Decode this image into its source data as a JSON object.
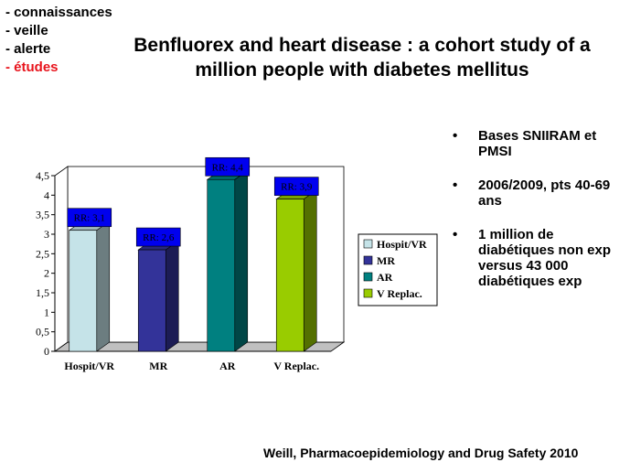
{
  "menu": {
    "items": [
      {
        "label": "- connaissances",
        "color": "#000000"
      },
      {
        "label": "- veille",
        "color": "#000000"
      },
      {
        "label": "- alerte",
        "color": "#000000"
      },
      {
        "label": "- études",
        "color": "#e8141c"
      }
    ]
  },
  "slide": {
    "title": "Benfluorex and heart disease : a cohort study of a million people with diabetes mellitus",
    "bullets": [
      "Bases SNIIRAM et PMSI",
      " 2006/2009, pts 40-69 ans",
      "1 million de diabétiques non exp  versus 43 000 diabétiques exp"
    ],
    "reference": "Weill,  Pharmacoepidemiology and Drug Safety 2010"
  },
  "chart_data": {
    "type": "bar",
    "categories": [
      "Hospit/VR",
      "MR",
      "AR",
      "V Replac."
    ],
    "values": [
      3.1,
      2.6,
      4.4,
      3.9
    ],
    "data_labels": [
      "RR: 3,1",
      "RR: 2,6",
      "RR: 4,4",
      "RR: 3,9"
    ],
    "colors": [
      "#c5e3e8",
      "#333399",
      "#008080",
      "#99cc00"
    ],
    "yticks": [
      "0",
      "0,5",
      "1",
      "1,5",
      "2",
      "2,5",
      "3",
      "3,5",
      "4",
      "4,5"
    ],
    "ylim": [
      0,
      4.5
    ],
    "grid": false,
    "legend": {
      "position": "right",
      "entries": [
        "Hospit/VR",
        "MR",
        "AR",
        "V Replac."
      ]
    }
  }
}
